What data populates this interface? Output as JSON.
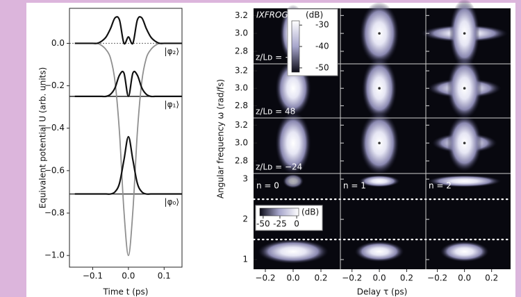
{
  "chart_data": [
    {
      "type": "line",
      "x_label": "Time t (ps)",
      "y_label": "Equivalent potential U (arb. units)",
      "xlim": [
        -0.165,
        0.15
      ],
      "ylim": [
        -1.055,
        0.165
      ],
      "xticks": [
        {
          "value": -0.1,
          "label": "−0.1"
        },
        {
          "value": 0,
          "label": "0.0"
        },
        0.1
      ],
      "yticks": [
        {
          "value": 0,
          "label": "0.0"
        },
        {
          "value": -0.2,
          "label": "−0.2"
        },
        {
          "value": -0.4,
          "label": "−0.4"
        },
        {
          "value": -0.6,
          "label": "−0.6"
        },
        {
          "value": -0.8,
          "label": "−0.8"
        },
        {
          "value": -1,
          "label": "−1.0"
        }
      ],
      "x": [
        -0.15,
        -0.1375,
        -0.125,
        -0.1125,
        -0.1,
        -0.0875,
        -0.075,
        -0.0625,
        -0.05,
        -0.0375,
        -0.025,
        -0.0125,
        0,
        0.0125,
        0.025,
        0.0375,
        0.05,
        0.0625,
        0.075,
        0.0875,
        0.1,
        0.1125,
        0.125,
        0.1375,
        0.15
      ],
      "series": [
        {
          "color": "#8f8f8f",
          "values": [
            0,
            0,
            0,
            0,
            0,
            0,
            -0.01,
            -0.03,
            -0.07,
            -0.18,
            -0.42,
            -0.79,
            -1.0,
            -0.79,
            -0.42,
            -0.18,
            -0.07,
            -0.03,
            -0.01,
            0,
            0,
            0,
            0,
            0,
            0
          ]
        },
        {
          "color": "#111111",
          "values": [
            0,
            0,
            0,
            0,
            0,
            0,
            0.01,
            0.03,
            0.07,
            0.12,
            0.11,
            0,
            0.03,
            0,
            0.11,
            0.12,
            0.07,
            0.03,
            0.01,
            0,
            0,
            0,
            0,
            0,
            0
          ]
        },
        {
          "color": "#111111",
          "values": [
            -0.25,
            -0.25,
            -0.25,
            -0.25,
            -0.25,
            -0.25,
            -0.25,
            -0.25,
            -0.24,
            -0.21,
            -0.15,
            -0.14,
            -0.25,
            -0.14,
            -0.15,
            -0.21,
            -0.24,
            -0.25,
            -0.25,
            -0.25,
            -0.25,
            -0.25,
            -0.25,
            -0.25,
            -0.25
          ]
        },
        {
          "color": "#111111",
          "values": [
            -0.71,
            -0.71,
            -0.71,
            -0.71,
            -0.71,
            -0.71,
            -0.71,
            -0.71,
            -0.71,
            -0.7,
            -0.66,
            -0.55,
            -0.44,
            -0.55,
            -0.66,
            -0.7,
            -0.71,
            -0.71,
            -0.71,
            -0.71,
            -0.71,
            -0.71,
            -0.71,
            -0.71,
            -0.71
          ]
        }
      ],
      "levels": [
        0,
        -0.25,
        -0.71
      ],
      "level_labels": [
        "|φ₂⟩",
        "|φ₁⟩",
        "|φ₀⟩"
      ]
    },
    {
      "type": "heatmap",
      "title": "IXFROG",
      "x_label": "Delay τ (ps)",
      "y_label": "Angular frequency ω (rad/fs)",
      "xlim": [
        -0.285,
        0.34
      ],
      "xticks": [
        {
          "value": -0.2,
          "label": "−0.2"
        },
        {
          "value": 0,
          "label": "0.0"
        },
        0.2
      ],
      "columns": [
        "n = 0",
        "n = 1",
        "n = 2"
      ],
      "rows": [
        {
          "label": "z/Lᴅ = −72",
          "ylim": [
            2.66,
            3.28
          ],
          "yticks": [
            3.2,
            {
              "value": 3,
              "label": "3.0"
            },
            2.8
          ]
        },
        {
          "label": "z/Lᴅ = 48",
          "ylim": [
            2.66,
            3.28
          ],
          "yticks": [
            3.2,
            {
              "value": 3,
              "label": "3.0"
            },
            2.8
          ]
        },
        {
          "label": "z/Lᴅ = −24",
          "ylim": [
            2.66,
            3.28
          ],
          "yticks": [
            3.2,
            {
              "value": 3,
              "label": "3.0"
            },
            2.8
          ]
        }
      ],
      "bottom": {
        "ylim": [
          0.76,
          3.14
        ],
        "yticks": [
          3,
          2,
          1
        ],
        "dotted": [
          2.5,
          1.5
        ]
      },
      "colorbars": [
        {
          "label": "(dB)",
          "clim": [
            -52,
            -28
          ],
          "ticks": [
            -30,
            -40,
            -50
          ]
        },
        {
          "label": "(dB)",
          "clim": [
            -55,
            3
          ],
          "ticks": [
            -50,
            -25,
            0
          ]
        }
      ]
    }
  ]
}
